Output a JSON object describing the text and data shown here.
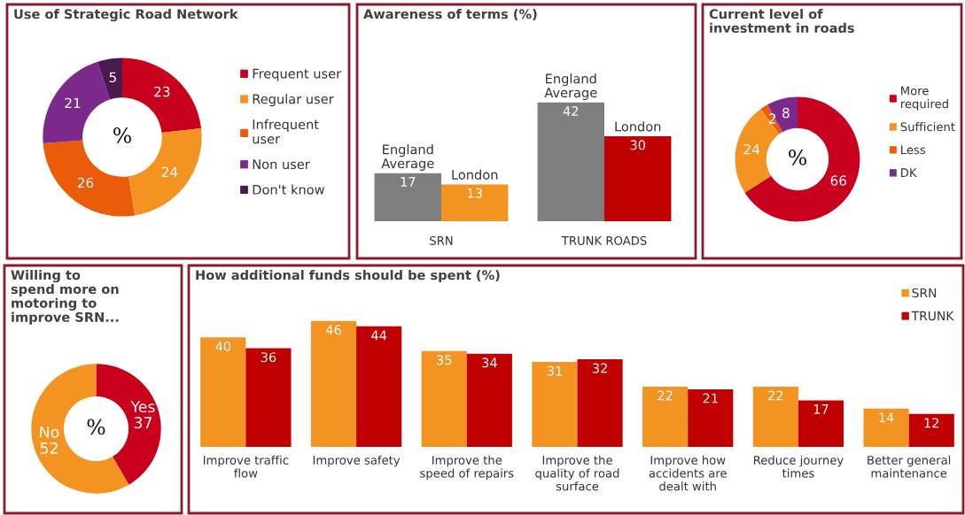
{
  "chart_data": [
    {
      "type": "donut",
      "title": "Use of Strategic Road Network",
      "categories": [
        "Frequent user",
        "Regular user",
        "Infrequent\nuser",
        "Non user",
        "Don't know"
      ],
      "values": [
        23,
        24,
        26,
        21,
        5
      ],
      "colors": [
        "#c8001e",
        "#f39322",
        "#eb5c0a",
        "#7b2a8c",
        "#4a1a4f"
      ],
      "legend": "right",
      "data_labels": true,
      "annotations": [
        "%"
      ]
    },
    {
      "type": "bar",
      "title": "Awareness of terms (%)",
      "categories": [
        "SRN",
        "TRUNK ROADS"
      ],
      "series": [
        {
          "name": "England Average",
          "color": "#7f7f7f",
          "values": [
            17,
            42
          ]
        },
        {
          "name": "London",
          "colors": [
            "#f39322",
            "#c00000"
          ],
          "values": [
            13,
            30
          ]
        }
      ],
      "data_labels": true
    },
    {
      "type": "donut",
      "title": "Current level of\ninvestment in roads",
      "categories": [
        "More\nrequired",
        "Sufficient",
        "Less",
        "DK"
      ],
      "values": [
        66,
        24,
        2,
        8
      ],
      "colors": [
        "#c8001e",
        "#f39322",
        "#eb5c0a",
        "#7b2a8c"
      ],
      "legend": "right",
      "data_labels": true,
      "annotations": [
        "%"
      ]
    },
    {
      "type": "donut",
      "title": "Willing to\nspend more on\nmotoring to\nimprove SRN...",
      "categories": [
        "Yes",
        "No"
      ],
      "values": [
        37,
        52
      ],
      "colors": [
        "#c8001e",
        "#f39322"
      ],
      "data_labels": true,
      "annotations": [
        "%"
      ]
    },
    {
      "type": "bar",
      "title": "How additional funds should be spent (%)",
      "categories": [
        "Improve traffic\nflow",
        "Improve safety",
        "Improve the\nspeed of repairs",
        "Improve the\nquality of road\nsurface",
        "Improve how\naccidents are\ndealt with",
        "Reduce journey\ntimes",
        "Better general\nmaintenance"
      ],
      "series": [
        {
          "name": "SRN",
          "color": "#f39322",
          "values": [
            40,
            46,
            35,
            31,
            22,
            22,
            14
          ]
        },
        {
          "name": "TRUNK",
          "color": "#c00000",
          "values": [
            36,
            44,
            34,
            32,
            21,
            17,
            12
          ]
        }
      ],
      "legend": "top right",
      "data_labels": true
    }
  ]
}
